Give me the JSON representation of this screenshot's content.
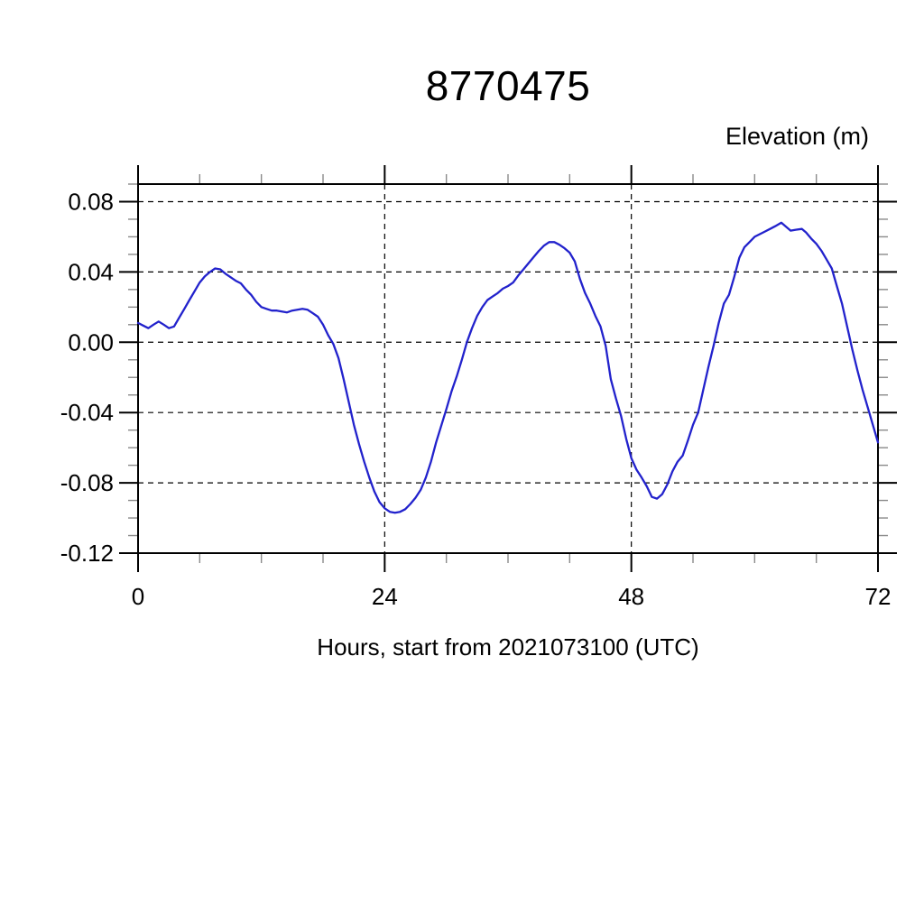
{
  "page": {
    "background": "#ffffff"
  },
  "chart_data": {
    "type": "line",
    "title": "8770475",
    "ylabel": "Elevation (m)",
    "xlabel": "Hours, start from 2021073100 (UTC)",
    "legend": "none",
    "grid": "dashed-at-major-ticks",
    "xlim": [
      0,
      72
    ],
    "ylim": [
      -0.12,
      0.09
    ],
    "x_major_ticks": [
      0,
      24,
      48,
      72
    ],
    "x_tick_labels": [
      "0",
      "24",
      "48",
      "72"
    ],
    "x_minor_step": 6,
    "y_major_ticks": [
      0.08,
      0.04,
      0.0,
      -0.04,
      -0.08,
      -0.12
    ],
    "y_tick_labels": [
      "0.08",
      "0.04",
      "0.00",
      "-0.04",
      "-0.08",
      "-0.12"
    ],
    "y_minor_step": 0.01,
    "line_color": "#2222cc",
    "axis_color": "#000000",
    "minor_tick_color": "#8a8a8a",
    "series": [
      {
        "name": "elevation",
        "points": [
          [
            0,
            0.011
          ],
          [
            0.5,
            0.0095
          ],
          [
            1,
            0.008
          ],
          [
            1.5,
            0.01
          ],
          [
            2,
            0.0118
          ],
          [
            2.5,
            0.01
          ],
          [
            3,
            0.008
          ],
          [
            3.5,
            0.009
          ],
          [
            4,
            0.014
          ],
          [
            4.5,
            0.019
          ],
          [
            5,
            0.024
          ],
          [
            5.5,
            0.029
          ],
          [
            6,
            0.034
          ],
          [
            6.5,
            0.0375
          ],
          [
            7,
            0.04
          ],
          [
            7.5,
            0.042
          ],
          [
            8,
            0.0415
          ],
          [
            8.5,
            0.039
          ],
          [
            9,
            0.037
          ],
          [
            9.5,
            0.035
          ],
          [
            10,
            0.0335
          ],
          [
            10.5,
            0.03
          ],
          [
            11,
            0.027
          ],
          [
            11.5,
            0.023
          ],
          [
            12,
            0.02
          ],
          [
            12.5,
            0.019
          ],
          [
            13,
            0.018
          ],
          [
            13.5,
            0.018
          ],
          [
            14,
            0.0175
          ],
          [
            14.5,
            0.017
          ],
          [
            15,
            0.018
          ],
          [
            15.5,
            0.0185
          ],
          [
            16,
            0.019
          ],
          [
            16.5,
            0.0185
          ],
          [
            17,
            0.0165
          ],
          [
            17.5,
            0.0145
          ],
          [
            18,
            0.01
          ],
          [
            18.5,
            0.004
          ],
          [
            19,
            -0.001
          ],
          [
            19.5,
            -0.009
          ],
          [
            20,
            -0.021
          ],
          [
            20.5,
            -0.034
          ],
          [
            21,
            -0.047
          ],
          [
            21.5,
            -0.058
          ],
          [
            22,
            -0.068
          ],
          [
            22.5,
            -0.077
          ],
          [
            23,
            -0.085
          ],
          [
            23.5,
            -0.091
          ],
          [
            24,
            -0.0945
          ],
          [
            24.5,
            -0.0965
          ],
          [
            25,
            -0.097
          ],
          [
            25.5,
            -0.0965
          ],
          [
            26,
            -0.095
          ],
          [
            26.5,
            -0.092
          ],
          [
            27,
            -0.0885
          ],
          [
            27.5,
            -0.084
          ],
          [
            28,
            -0.077
          ],
          [
            28.5,
            -0.068
          ],
          [
            29,
            -0.057
          ],
          [
            29.5,
            -0.0475
          ],
          [
            30,
            -0.038
          ],
          [
            30.5,
            -0.028
          ],
          [
            31,
            -0.0195
          ],
          [
            31.5,
            -0.01
          ],
          [
            32,
            0.0
          ],
          [
            32.5,
            0.008
          ],
          [
            33,
            0.015
          ],
          [
            33.5,
            0.02
          ],
          [
            34,
            0.024
          ],
          [
            34.5,
            0.026
          ],
          [
            35,
            0.028
          ],
          [
            35.5,
            0.0305
          ],
          [
            36,
            0.032
          ],
          [
            36.5,
            0.034
          ],
          [
            37,
            0.038
          ],
          [
            37.5,
            0.0415
          ],
          [
            38,
            0.045
          ],
          [
            38.5,
            0.0485
          ],
          [
            39,
            0.052
          ],
          [
            39.5,
            0.055
          ],
          [
            40,
            0.057
          ],
          [
            40.5,
            0.057
          ],
          [
            41,
            0.0555
          ],
          [
            41.5,
            0.0535
          ],
          [
            42,
            0.051
          ],
          [
            42.5,
            0.046
          ],
          [
            43,
            0.036
          ],
          [
            43.5,
            0.028
          ],
          [
            44,
            0.022
          ],
          [
            44.5,
            0.015
          ],
          [
            45,
            0.009
          ],
          [
            45.5,
            -0.002
          ],
          [
            46,
            -0.021
          ],
          [
            46.5,
            -0.032
          ],
          [
            47,
            -0.042
          ],
          [
            47.5,
            -0.055
          ],
          [
            48,
            -0.066
          ],
          [
            48.5,
            -0.0725
          ],
          [
            49,
            -0.077
          ],
          [
            49.5,
            -0.082
          ],
          [
            50,
            -0.088
          ],
          [
            50.5,
            -0.089
          ],
          [
            51,
            -0.0865
          ],
          [
            51.5,
            -0.081
          ],
          [
            52,
            -0.0735
          ],
          [
            52.5,
            -0.068
          ],
          [
            53,
            -0.0645
          ],
          [
            53.5,
            -0.056
          ],
          [
            54,
            -0.047
          ],
          [
            54.5,
            -0.04
          ],
          [
            55,
            -0.027
          ],
          [
            55.5,
            -0.014
          ],
          [
            56,
            -0.002
          ],
          [
            56.5,
            0.011
          ],
          [
            57,
            0.022
          ],
          [
            57.5,
            0.027
          ],
          [
            58,
            0.037
          ],
          [
            58.5,
            0.048
          ],
          [
            59,
            0.054
          ],
          [
            59.5,
            0.057
          ],
          [
            60,
            0.06
          ],
          [
            60.5,
            0.0615
          ],
          [
            61,
            0.063
          ],
          [
            61.5,
            0.0645
          ],
          [
            62,
            0.066
          ],
          [
            62.6,
            0.068
          ],
          [
            63,
            0.066
          ],
          [
            63.5,
            0.0635
          ],
          [
            64,
            0.064
          ],
          [
            64.6,
            0.0645
          ],
          [
            65,
            0.0625
          ],
          [
            65.5,
            0.059
          ],
          [
            66,
            0.056
          ],
          [
            66.5,
            0.052
          ],
          [
            67,
            0.047
          ],
          [
            67.5,
            0.042
          ],
          [
            68,
            0.032
          ],
          [
            68.5,
            0.022
          ],
          [
            69,
            0.009
          ],
          [
            69.5,
            -0.004
          ],
          [
            70,
            -0.016
          ],
          [
            70.5,
            -0.027
          ],
          [
            71,
            -0.037
          ],
          [
            71.5,
            -0.047
          ],
          [
            72,
            -0.057
          ]
        ]
      }
    ]
  }
}
